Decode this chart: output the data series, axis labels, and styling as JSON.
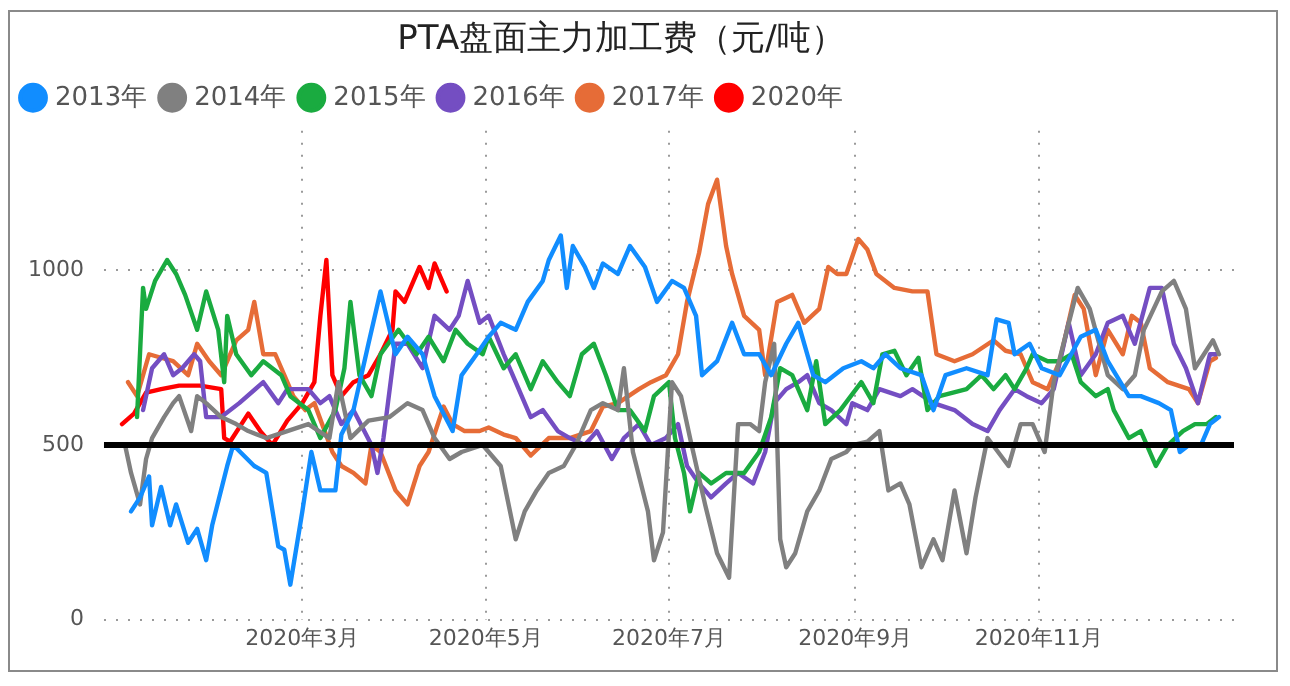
{
  "chart_data": {
    "type": "line",
    "title": "PTA盘面主力加工费（元/吨）",
    "legend": "top left",
    "grid": true,
    "marker": "none",
    "line_style": "solid",
    "xlim": [
      "2019-12-26",
      "2021-01-05"
    ],
    "xticks": [
      {
        "value": "2020-03-01",
        "label": "2020年3月"
      },
      {
        "value": "2020-05-01",
        "label": "2020年5月"
      },
      {
        "value": "2020-07-01",
        "label": "2020年7月"
      },
      {
        "value": "2020-09-01",
        "label": "2020年9月"
      },
      {
        "value": "2020-11-01",
        "label": "2020年11月"
      }
    ],
    "ylim": [
      0,
      1400
    ],
    "yticks": [
      0,
      500,
      1000
    ],
    "ref_lines": [
      {
        "axis": "y",
        "value": 500,
        "color": "#000000"
      }
    ],
    "series": [
      {
        "name": "2013年",
        "color": "#118dff",
        "x": [
          "2020-01-04",
          "2020-01-07",
          "2020-01-10",
          "2020-01-11",
          "2020-01-14",
          "2020-01-17",
          "2020-01-19",
          "2020-01-23",
          "2020-01-26",
          "2020-01-29",
          "2020-01-31",
          "2020-02-05",
          "2020-02-07",
          "2020-02-14",
          "2020-02-18",
          "2020-02-22",
          "2020-02-24",
          "2020-02-26",
          "2020-03-01",
          "2020-03-04",
          "2020-03-07",
          "2020-03-12",
          "2020-03-14",
          "2020-03-18",
          "2020-03-23",
          "2020-03-27",
          "2020-04-01",
          "2020-04-05",
          "2020-04-10",
          "2020-04-14",
          "2020-04-20",
          "2020-04-23",
          "2020-04-28",
          "2020-05-02",
          "2020-05-06",
          "2020-05-11",
          "2020-05-15",
          "2020-05-20",
          "2020-05-22",
          "2020-05-26",
          "2020-05-28",
          "2020-05-30",
          "2020-06-03",
          "2020-06-06",
          "2020-06-09",
          "2020-06-14",
          "2020-06-18",
          "2020-06-23",
          "2020-06-27",
          "2020-07-02",
          "2020-07-06",
          "2020-07-10",
          "2020-07-12",
          "2020-07-17",
          "2020-07-22",
          "2020-07-26",
          "2020-07-31",
          "2020-08-04",
          "2020-08-09",
          "2020-08-13",
          "2020-08-18",
          "2020-08-22",
          "2020-08-28",
          "2020-09-03",
          "2020-09-07",
          "2020-09-11",
          "2020-09-16",
          "2020-09-23",
          "2020-09-27",
          "2020-10-01",
          "2020-10-08",
          "2020-10-15",
          "2020-10-18",
          "2020-10-22",
          "2020-10-24",
          "2020-10-29",
          "2020-11-02",
          "2020-11-08",
          "2020-11-15",
          "2020-11-20",
          "2020-11-24",
          "2020-12-01",
          "2020-12-05",
          "2020-12-11",
          "2020-12-15",
          "2020-12-18",
          "2020-12-21",
          "2020-12-25",
          "2020-12-28",
          "2020-12-31"
        ],
        "values": [
          310,
          350,
          410,
          270,
          380,
          270,
          330,
          220,
          260,
          170,
          270,
          440,
          500,
          440,
          420,
          210,
          200,
          100,
          310,
          480,
          370,
          370,
          530,
          600,
          790,
          940,
          760,
          810,
          760,
          640,
          540,
          700,
          760,
          810,
          850,
          830,
          910,
          970,
          1030,
          1100,
          950,
          1070,
          1010,
          950,
          1020,
          990,
          1070,
          1010,
          910,
          970,
          950,
          870,
          700,
          740,
          850,
          760,
          760,
          700,
          790,
          850,
          700,
          680,
          720,
          740,
          720,
          760,
          720,
          700,
          600,
          700,
          720,
          700,
          860,
          850,
          760,
          790,
          720,
          700,
          810,
          830,
          740,
          640,
          640,
          620,
          600,
          480,
          500,
          500,
          560,
          580
        ]
      },
      {
        "name": "2014年",
        "color": "#808080",
        "x": [
          "2020-01-02",
          "2020-01-04",
          "2020-01-07",
          "2020-01-09",
          "2020-01-11",
          "2020-01-15",
          "2020-01-18",
          "2020-01-20",
          "2020-01-24",
          "2020-01-26",
          "2020-01-29",
          "2020-02-03",
          "2020-02-08",
          "2020-02-12",
          "2020-02-18",
          "2020-02-25",
          "2020-03-03",
          "2020-03-10",
          "2020-03-13",
          "2020-03-17",
          "2020-03-23",
          "2020-03-30",
          "2020-04-05",
          "2020-04-10",
          "2020-04-14",
          "2020-04-19",
          "2020-04-23",
          "2020-04-30",
          "2020-05-02",
          "2020-05-06",
          "2020-05-11",
          "2020-05-14",
          "2020-05-18",
          "2020-05-22",
          "2020-05-27",
          "2020-05-31",
          "2020-06-05",
          "2020-06-09",
          "2020-06-14",
          "2020-06-16",
          "2020-06-19",
          "2020-06-24",
          "2020-06-26",
          "2020-06-29",
          "2020-07-02",
          "2020-07-05",
          "2020-07-08",
          "2020-07-13",
          "2020-07-17",
          "2020-07-21",
          "2020-07-24",
          "2020-07-28",
          "2020-07-31",
          "2020-08-02",
          "2020-08-05",
          "2020-08-07",
          "2020-08-09",
          "2020-08-12",
          "2020-08-16",
          "2020-08-20",
          "2020-08-24",
          "2020-08-29",
          "2020-08-31",
          "2020-09-05",
          "2020-09-09",
          "2020-09-12",
          "2020-09-16",
          "2020-09-19",
          "2020-09-23",
          "2020-09-27",
          "2020-09-30",
          "2020-10-04",
          "2020-10-08",
          "2020-10-11",
          "2020-10-15",
          "2020-10-22",
          "2020-10-26",
          "2020-10-30",
          "2020-11-03",
          "2020-11-06",
          "2020-11-14",
          "2020-11-18",
          "2020-11-24",
          "2020-11-29",
          "2020-12-03",
          "2020-12-06",
          "2020-12-12",
          "2020-12-16",
          "2020-12-20",
          "2020-12-23",
          "2020-12-26",
          "2020-12-29",
          "2020-12-31"
        ],
        "values": [
          500,
          420,
          330,
          460,
          520,
          580,
          620,
          640,
          540,
          640,
          620,
          580,
          560,
          540,
          520,
          540,
          560,
          520,
          680,
          520,
          570,
          580,
          620,
          600,
          520,
          460,
          480,
          500,
          480,
          440,
          230,
          310,
          370,
          420,
          440,
          500,
          600,
          620,
          600,
          720,
          480,
          310,
          170,
          250,
          680,
          640,
          520,
          330,
          190,
          120,
          560,
          560,
          540,
          680,
          790,
          230,
          150,
          190,
          310,
          370,
          460,
          480,
          500,
          510,
          540,
          370,
          390,
          330,
          150,
          230,
          170,
          370,
          190,
          350,
          520,
          440,
          560,
          560,
          480,
          680,
          950,
          890,
          700,
          660,
          700,
          830,
          940,
          970,
          890,
          720,
          760,
          800,
          760
        ]
      },
      {
        "name": "2015年",
        "color": "#1aab40",
        "x": [
          "2020-01-06",
          "2020-01-08",
          "2020-01-09",
          "2020-01-12",
          "2020-01-16",
          "2020-01-19",
          "2020-01-22",
          "2020-01-26",
          "2020-01-29",
          "2020-02-02",
          "2020-02-04",
          "2020-02-05",
          "2020-02-08",
          "2020-02-13",
          "2020-02-17",
          "2020-02-23",
          "2020-02-26",
          "2020-03-03",
          "2020-03-07",
          "2020-03-12",
          "2020-03-15",
          "2020-03-17",
          "2020-03-20",
          "2020-03-24",
          "2020-03-27",
          "2020-04-02",
          "2020-04-08",
          "2020-04-12",
          "2020-04-17",
          "2020-04-21",
          "2020-04-25",
          "2020-04-30",
          "2020-05-02",
          "2020-05-07",
          "2020-05-11",
          "2020-05-16",
          "2020-05-20",
          "2020-05-25",
          "2020-05-29",
          "2020-06-02",
          "2020-06-06",
          "2020-06-10",
          "2020-06-14",
          "2020-06-18",
          "2020-06-23",
          "2020-06-26",
          "2020-07-01",
          "2020-07-03",
          "2020-07-06",
          "2020-07-08",
          "2020-07-11",
          "2020-07-15",
          "2020-07-20",
          "2020-07-26",
          "2020-07-31",
          "2020-08-04",
          "2020-08-07",
          "2020-08-11",
          "2020-08-16",
          "2020-08-19",
          "2020-08-22",
          "2020-08-27",
          "2020-09-03",
          "2020-09-07",
          "2020-09-10",
          "2020-09-14",
          "2020-09-18",
          "2020-09-22",
          "2020-09-25",
          "2020-09-29",
          "2020-10-08",
          "2020-10-13",
          "2020-10-17",
          "2020-10-21",
          "2020-10-24",
          "2020-10-28",
          "2020-10-30",
          "2020-11-04",
          "2020-11-08",
          "2020-11-12",
          "2020-11-15",
          "2020-11-20",
          "2020-11-24",
          "2020-11-26",
          "2020-12-01",
          "2020-12-05",
          "2020-12-10",
          "2020-12-14",
          "2020-12-19",
          "2020-12-23",
          "2020-12-27",
          "2020-12-30"
        ],
        "values": [
          580,
          950,
          890,
          970,
          1030,
          990,
          930,
          830,
          940,
          830,
          680,
          870,
          760,
          700,
          740,
          700,
          640,
          600,
          520,
          600,
          720,
          910,
          700,
          640,
          760,
          830,
          760,
          810,
          740,
          830,
          790,
          760,
          810,
          720,
          760,
          660,
          740,
          680,
          640,
          760,
          790,
          700,
          600,
          600,
          540,
          640,
          680,
          520,
          420,
          310,
          420,
          390,
          420,
          420,
          480,
          580,
          720,
          700,
          600,
          740,
          560,
          600,
          680,
          620,
          760,
          770,
          700,
          750,
          600,
          640,
          660,
          700,
          660,
          700,
          660,
          720,
          760,
          740,
          740,
          760,
          680,
          640,
          660,
          600,
          520,
          540,
          440,
          500,
          540,
          560,
          560,
          580
        ]
      },
      {
        "name": "2016年",
        "color": "#744ec2",
        "x": [
          "2020-01-08",
          "2020-01-11",
          "2020-01-15",
          "2020-01-18",
          "2020-01-21",
          "2020-01-25",
          "2020-01-27",
          "2020-01-29",
          "2020-02-03",
          "2020-02-09",
          "2020-02-17",
          "2020-02-22",
          "2020-02-25",
          "2020-03-03",
          "2020-03-07",
          "2020-03-10",
          "2020-03-14",
          "2020-03-18",
          "2020-03-24",
          "2020-03-26",
          "2020-03-28",
          "2020-04-01",
          "2020-04-05",
          "2020-04-10",
          "2020-04-14",
          "2020-04-19",
          "2020-04-22",
          "2020-04-25",
          "2020-04-29",
          "2020-05-02",
          "2020-05-07",
          "2020-05-11",
          "2020-05-16",
          "2020-05-20",
          "2020-05-25",
          "2020-05-29",
          "2020-06-03",
          "2020-06-07",
          "2020-06-12",
          "2020-06-16",
          "2020-06-21",
          "2020-06-25",
          "2020-06-30",
          "2020-07-04",
          "2020-07-07",
          "2020-07-11",
          "2020-07-15",
          "2020-07-20",
          "2020-07-24",
          "2020-07-29",
          "2020-08-02",
          "2020-08-05",
          "2020-08-09",
          "2020-08-13",
          "2020-08-16",
          "2020-08-20",
          "2020-08-24",
          "2020-08-29",
          "2020-08-31",
          "2020-09-05",
          "2020-09-09",
          "2020-09-16",
          "2020-09-20",
          "2020-09-27",
          "2020-10-04",
          "2020-10-10",
          "2020-10-15",
          "2020-10-19",
          "2020-10-24",
          "2020-10-28",
          "2020-11-02",
          "2020-11-06",
          "2020-11-11",
          "2020-11-15",
          "2020-11-20",
          "2020-11-24",
          "2020-11-29",
          "2020-12-03",
          "2020-12-08",
          "2020-12-12",
          "2020-12-16",
          "2020-12-20",
          "2020-12-24",
          "2020-12-28",
          "2020-12-30"
        ],
        "values": [
          600,
          720,
          760,
          700,
          720,
          760,
          740,
          580,
          580,
          620,
          680,
          620,
          660,
          660,
          620,
          640,
          560,
          600,
          500,
          420,
          520,
          790,
          790,
          720,
          870,
          830,
          870,
          970,
          850,
          870,
          760,
          680,
          580,
          600,
          540,
          520,
          500,
          540,
          460,
          520,
          560,
          500,
          520,
          560,
          440,
          390,
          350,
          390,
          420,
          390,
          480,
          620,
          660,
          680,
          700,
          620,
          600,
          560,
          620,
          600,
          660,
          640,
          660,
          620,
          600,
          560,
          540,
          600,
          660,
          640,
          620,
          660,
          850,
          700,
          760,
          850,
          870,
          790,
          950,
          950,
          790,
          720,
          620,
          760,
          760
        ]
      },
      {
        "name": "2017年",
        "color": "#e66c37",
        "x": [
          "2020-01-03",
          "2020-01-06",
          "2020-01-10",
          "2020-01-14",
          "2020-01-18",
          "2020-01-23",
          "2020-01-26",
          "2020-01-30",
          "2020-02-03",
          "2020-02-08",
          "2020-02-12",
          "2020-02-14",
          "2020-02-17",
          "2020-02-21",
          "2020-02-24",
          "2020-02-27",
          "2020-03-02",
          "2020-03-05",
          "2020-03-11",
          "2020-03-14",
          "2020-03-18",
          "2020-03-22",
          "2020-03-24",
          "2020-03-27",
          "2020-04-01",
          "2020-04-05",
          "2020-04-09",
          "2020-04-12",
          "2020-04-17",
          "2020-04-20",
          "2020-04-24",
          "2020-04-29",
          "2020-05-02",
          "2020-05-07",
          "2020-05-11",
          "2020-05-16",
          "2020-05-22",
          "2020-05-29",
          "2020-06-05",
          "2020-06-09",
          "2020-06-14",
          "2020-06-21",
          "2020-06-25",
          "2020-06-30",
          "2020-07-04",
          "2020-07-07",
          "2020-07-11",
          "2020-07-14",
          "2020-07-17",
          "2020-07-20",
          "2020-07-22",
          "2020-07-26",
          "2020-07-31",
          "2020-08-02",
          "2020-08-06",
          "2020-08-11",
          "2020-08-15",
          "2020-08-20",
          "2020-08-23",
          "2020-08-26",
          "2020-08-29",
          "2020-09-02",
          "2020-09-05",
          "2020-09-08",
          "2020-09-14",
          "2020-09-20",
          "2020-09-25",
          "2020-09-28",
          "2020-10-04",
          "2020-10-10",
          "2020-10-17",
          "2020-10-21",
          "2020-10-26",
          "2020-10-30",
          "2020-11-04",
          "2020-11-08",
          "2020-11-13",
          "2020-11-16",
          "2020-11-20",
          "2020-11-24",
          "2020-11-29",
          "2020-12-02",
          "2020-12-05",
          "2020-12-08",
          "2020-12-14",
          "2020-12-21",
          "2020-12-24",
          "2020-12-28",
          "2020-12-30"
        ],
        "values": [
          680,
          640,
          760,
          750,
          740,
          700,
          790,
          740,
          700,
          800,
          830,
          910,
          760,
          760,
          700,
          640,
          600,
          620,
          480,
          440,
          420,
          390,
          500,
          480,
          370,
          330,
          440,
          480,
          610,
          560,
          540,
          540,
          550,
          530,
          520,
          470,
          520,
          520,
          540,
          610,
          620,
          660,
          680,
          700,
          760,
          910,
          1050,
          1190,
          1260,
          1070,
          990,
          870,
          830,
          700,
          910,
          930,
          850,
          890,
          1010,
          990,
          990,
          1090,
          1060,
          990,
          950,
          940,
          940,
          760,
          740,
          760,
          800,
          770,
          760,
          680,
          660,
          740,
          930,
          890,
          700,
          830,
          760,
          870,
          850,
          720,
          680,
          660,
          620,
          740,
          750
        ]
      },
      {
        "name": "2020年",
        "color": "#ff0000",
        "x": [
          "2020-01-01",
          "2020-01-05",
          "2020-01-09",
          "2020-01-14",
          "2020-01-20",
          "2020-01-27",
          "2020-02-03",
          "2020-02-04",
          "2020-02-06",
          "2020-02-12",
          "2020-02-16",
          "2020-02-20",
          "2020-02-25",
          "2020-03-01",
          "2020-03-05",
          "2020-03-07",
          "2020-03-09",
          "2020-03-11",
          "2020-03-14",
          "2020-03-18",
          "2020-03-23",
          "2020-03-27",
          "2020-03-31",
          "2020-04-01",
          "2020-04-04",
          "2020-04-09",
          "2020-04-12",
          "2020-04-14",
          "2020-04-18"
        ],
        "values": [
          560,
          590,
          650,
          660,
          670,
          670,
          660,
          520,
          510,
          590,
          540,
          500,
          570,
          620,
          680,
          870,
          1030,
          700,
          640,
          680,
          700,
          760,
          830,
          940,
          910,
          1010,
          950,
          1020,
          940
        ]
      }
    ]
  }
}
